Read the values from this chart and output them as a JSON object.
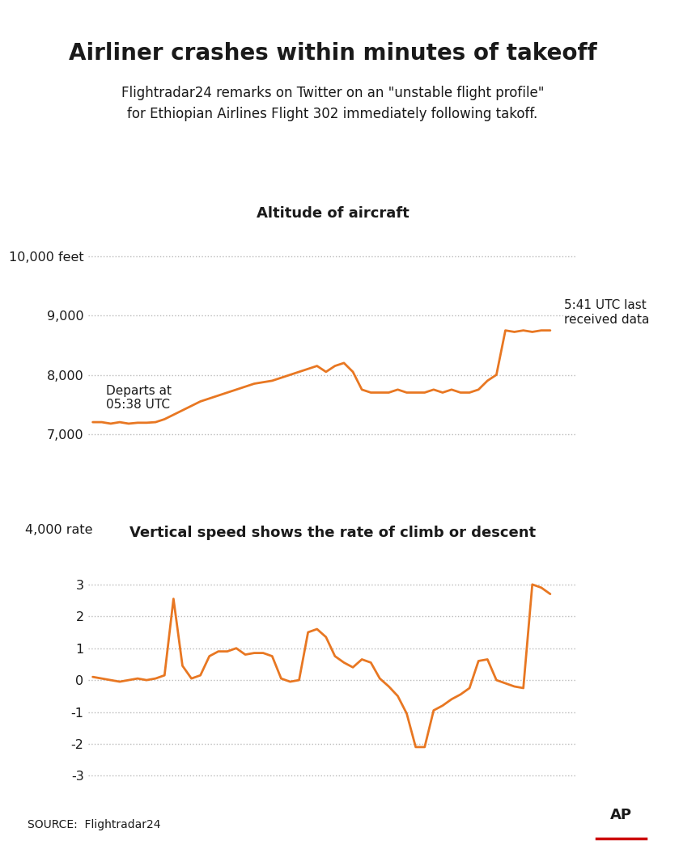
{
  "title": "Airliner crashes within minutes of takeoff",
  "subtitle": "Flightradar24 remarks on Twitter on an \"unstable flight profile\"\nfor Ethiopian Airlines Flight 302 immediately following takoff.",
  "alt_title": "Altitude of aircraft",
  "vs_title": "Vertical speed shows the rate of climb or descent",
  "line_color": "#E87722",
  "bg_color": "#FFFFFF",
  "grid_color": "#BBBBBB",
  "text_color": "#1a1a1a",
  "source_text": "SOURCE:  Flightradar24",
  "alt_yticks": [
    7000,
    8000,
    9000,
    10000
  ],
  "alt_ytick_labels": [
    "7,000",
    "8,000",
    "9,000",
    "10,000 feet"
  ],
  "alt_ylim": [
    6700,
    10500
  ],
  "vs_yticks": [
    -3,
    -2,
    -1,
    0,
    1,
    2,
    3
  ],
  "vs_ytick_labels": [
    "-3",
    "-2",
    "-1",
    "0",
    "1",
    "2",
    "3"
  ],
  "vs_ylabel_extra": "4,000 rate",
  "vs_ylim": [
    -3.7,
    4.2
  ],
  "depart_annotation": "Departs at\n05:38 UTC",
  "last_data_annotation": "5:41 UTC last\nreceived data",
  "alt_x": [
    0,
    1,
    2,
    3,
    4,
    5,
    6,
    7,
    8,
    9,
    10,
    11,
    12,
    13,
    14,
    15,
    16,
    17,
    18,
    19,
    20,
    21,
    22,
    23,
    24,
    25,
    26,
    27,
    28,
    29,
    30,
    31,
    32,
    33,
    34,
    35,
    36,
    37,
    38,
    39,
    40,
    41,
    42,
    43,
    44,
    45,
    46,
    47,
    48,
    49,
    50,
    51
  ],
  "alt_y": [
    7200,
    7200,
    7175,
    7200,
    7175,
    7190,
    7190,
    7200,
    7250,
    7325,
    7400,
    7475,
    7550,
    7600,
    7650,
    7700,
    7750,
    7800,
    7850,
    7875,
    7900,
    7950,
    8000,
    8050,
    8100,
    8150,
    8050,
    8150,
    8200,
    8050,
    7750,
    7700,
    7700,
    7700,
    7750,
    7700,
    7700,
    7700,
    7750,
    7700,
    7750,
    7700,
    7700,
    7750,
    7900,
    8000,
    8750,
    8725,
    8750,
    8725,
    8750,
    8750
  ],
  "vs_x": [
    0,
    1,
    2,
    3,
    4,
    5,
    6,
    7,
    8,
    9,
    10,
    11,
    12,
    13,
    14,
    15,
    16,
    17,
    18,
    19,
    20,
    21,
    22,
    23,
    24,
    25,
    26,
    27,
    28,
    29,
    30,
    31,
    32,
    33,
    34,
    35,
    36,
    37,
    38,
    39,
    40,
    41,
    42,
    43,
    44,
    45,
    46,
    47,
    48,
    49,
    50,
    51
  ],
  "vs_y": [
    0.1,
    0.05,
    0.0,
    -0.05,
    0.0,
    0.05,
    0.0,
    0.05,
    0.15,
    2.55,
    0.45,
    0.05,
    0.15,
    0.75,
    0.9,
    0.9,
    1.0,
    0.8,
    0.85,
    0.85,
    0.75,
    0.05,
    -0.05,
    0.0,
    1.5,
    1.6,
    1.35,
    0.75,
    0.55,
    0.4,
    0.65,
    0.55,
    0.05,
    -0.2,
    -0.5,
    -1.05,
    -2.1,
    -2.1,
    -0.95,
    -0.8,
    -0.6,
    -0.45,
    -0.25,
    0.6,
    0.65,
    0.0,
    -0.1,
    -0.2,
    -0.25,
    3.0,
    2.9,
    2.7
  ]
}
